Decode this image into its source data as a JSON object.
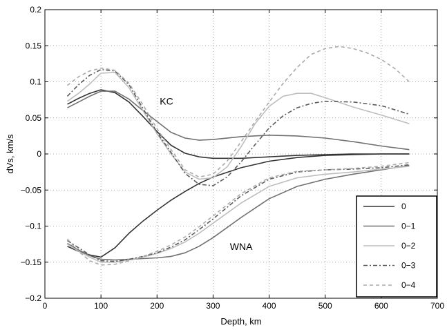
{
  "chart_data": {
    "type": "line",
    "title": "",
    "xlabel": "Depth, km",
    "ylabel": "dVs, km/s",
    "xlim": [
      0,
      700
    ],
    "ylim": [
      -0.2,
      0.2
    ],
    "xticks": [
      0,
      100,
      200,
      300,
      400,
      500,
      600,
      700
    ],
    "yticks": [
      -0.2,
      -0.15,
      -0.1,
      -0.05,
      0,
      0.05,
      0.1,
      0.15,
      0.2
    ],
    "xtick_labels": [
      "0",
      "100",
      "200",
      "300",
      "400",
      "500",
      "600",
      "700"
    ],
    "ytick_labels": [
      "−0.2",
      "−0.15",
      "−0.1",
      "−0.05",
      "0",
      "0.05",
      "0.1",
      "0.15",
      "0.2"
    ],
    "grid": true,
    "legend_position": "bottom-right",
    "annotations": [
      {
        "text": "KC",
        "x": 200,
        "y": 0.073
      },
      {
        "text": "WNA",
        "x": 330,
        "y": -0.128
      }
    ],
    "series": [
      {
        "name": "0",
        "group": "KC",
        "color": "#333333",
        "dash": "solid",
        "x": [
          40,
          60,
          80,
          100,
          125,
          150,
          175,
          200,
          225,
          250,
          275,
          300,
          350,
          400,
          450,
          500,
          550,
          600,
          650
        ],
        "y": [
          0.069,
          0.077,
          0.084,
          0.089,
          0.085,
          0.072,
          0.052,
          0.031,
          0.012,
          0.001,
          -0.004,
          -0.006,
          -0.006,
          -0.004,
          -0.002,
          -0.001,
          0,
          0,
          0
        ]
      },
      {
        "name": "0",
        "group": "WNA",
        "color": "#333333",
        "dash": "solid",
        "x": [
          40,
          60,
          80,
          100,
          125,
          150,
          175,
          200,
          225,
          250,
          275,
          300,
          350,
          400,
          450,
          500,
          550,
          600,
          650
        ],
        "y": [
          -0.128,
          -0.135,
          -0.14,
          -0.143,
          -0.13,
          -0.11,
          -0.093,
          -0.078,
          -0.064,
          -0.052,
          -0.041,
          -0.032,
          -0.019,
          -0.01,
          -0.005,
          -0.002,
          -0.001,
          0,
          0
        ]
      },
      {
        "name": "0−1",
        "group": "KC",
        "color": "#707070",
        "dash": "solid",
        "x": [
          40,
          60,
          80,
          100,
          125,
          150,
          175,
          200,
          225,
          250,
          275,
          300,
          350,
          400,
          450,
          500,
          550,
          600,
          650
        ],
        "y": [
          0.064,
          0.072,
          0.08,
          0.087,
          0.087,
          0.076,
          0.06,
          0.045,
          0.03,
          0.022,
          0.019,
          0.02,
          0.024,
          0.026,
          0.025,
          0.022,
          0.017,
          0.011,
          0.006
        ]
      },
      {
        "name": "0−1",
        "group": "WNA",
        "color": "#707070",
        "dash": "solid",
        "x": [
          40,
          60,
          80,
          100,
          125,
          150,
          175,
          200,
          225,
          250,
          275,
          300,
          350,
          400,
          450,
          500,
          550,
          600,
          650
        ],
        "y": [
          -0.124,
          -0.133,
          -0.141,
          -0.146,
          -0.147,
          -0.146,
          -0.145,
          -0.144,
          -0.142,
          -0.137,
          -0.128,
          -0.116,
          -0.088,
          -0.062,
          -0.045,
          -0.035,
          -0.028,
          -0.022,
          -0.016
        ]
      },
      {
        "name": "0−2",
        "group": "KC",
        "color": "#bdbdbd",
        "dash": "solid",
        "x": [
          40,
          60,
          80,
          100,
          125,
          150,
          175,
          200,
          225,
          250,
          275,
          300,
          325,
          350,
          375,
          400,
          425,
          450,
          475,
          500,
          550,
          600,
          650
        ],
        "y": [
          0.073,
          0.084,
          0.097,
          0.112,
          0.113,
          0.092,
          0.06,
          0.028,
          0.0,
          -0.025,
          -0.035,
          -0.033,
          -0.018,
          0.01,
          0.042,
          0.066,
          0.08,
          0.084,
          0.084,
          0.078,
          0.065,
          0.054,
          0.042
        ]
      },
      {
        "name": "0−2",
        "group": "WNA",
        "color": "#bdbdbd",
        "dash": "solid",
        "x": [
          40,
          60,
          80,
          100,
          125,
          150,
          175,
          200,
          225,
          250,
          275,
          300,
          350,
          400,
          450,
          500,
          550,
          600,
          650
        ],
        "y": [
          -0.125,
          -0.135,
          -0.143,
          -0.15,
          -0.15,
          -0.147,
          -0.143,
          -0.138,
          -0.131,
          -0.122,
          -0.11,
          -0.096,
          -0.068,
          -0.045,
          -0.033,
          -0.028,
          -0.025,
          -0.021,
          -0.017
        ]
      },
      {
        "name": "0−3",
        "group": "KC",
        "color": "#5a5a5a",
        "dash": "6,3,2,3",
        "x": [
          40,
          60,
          80,
          100,
          125,
          150,
          175,
          200,
          225,
          250,
          275,
          300,
          325,
          350,
          375,
          400,
          425,
          450,
          475,
          500,
          550,
          600,
          650
        ],
        "y": [
          0.08,
          0.096,
          0.109,
          0.117,
          0.115,
          0.096,
          0.063,
          0.03,
          0.002,
          -0.027,
          -0.042,
          -0.044,
          -0.032,
          -0.011,
          0.013,
          0.036,
          0.053,
          0.064,
          0.07,
          0.073,
          0.072,
          0.067,
          0.055
        ]
      },
      {
        "name": "0−3",
        "group": "WNA",
        "color": "#5a5a5a",
        "dash": "6,3,2,3",
        "x": [
          40,
          60,
          80,
          100,
          125,
          150,
          175,
          200,
          225,
          250,
          275,
          300,
          350,
          400,
          450,
          500,
          550,
          600,
          650
        ],
        "y": [
          -0.12,
          -0.13,
          -0.14,
          -0.148,
          -0.149,
          -0.146,
          -0.142,
          -0.137,
          -0.129,
          -0.119,
          -0.105,
          -0.09,
          -0.058,
          -0.035,
          -0.025,
          -0.022,
          -0.021,
          -0.019,
          -0.015
        ]
      },
      {
        "name": "0−4",
        "group": "KC",
        "color": "#aaaaaa",
        "dash": "5,4",
        "x": [
          40,
          60,
          80,
          100,
          125,
          150,
          175,
          200,
          225,
          250,
          275,
          300,
          325,
          350,
          375,
          400,
          425,
          450,
          475,
          500,
          525,
          550,
          575,
          600,
          625,
          650
        ],
        "y": [
          0.095,
          0.107,
          0.115,
          0.119,
          0.116,
          0.098,
          0.068,
          0.035,
          0.006,
          -0.022,
          -0.032,
          -0.028,
          -0.01,
          0.017,
          0.045,
          0.072,
          0.098,
          0.12,
          0.138,
          0.146,
          0.149,
          0.146,
          0.14,
          0.131,
          0.118,
          0.1
        ]
      },
      {
        "name": "0−4",
        "group": "WNA",
        "color": "#aaaaaa",
        "dash": "5,4",
        "x": [
          40,
          60,
          80,
          100,
          125,
          150,
          175,
          200,
          225,
          250,
          275,
          300,
          350,
          400,
          450,
          500,
          550,
          600,
          650
        ],
        "y": [
          -0.118,
          -0.135,
          -0.148,
          -0.154,
          -0.153,
          -0.148,
          -0.142,
          -0.135,
          -0.126,
          -0.115,
          -0.101,
          -0.086,
          -0.055,
          -0.033,
          -0.024,
          -0.022,
          -0.02,
          -0.017,
          -0.012
        ]
      }
    ],
    "legend": [
      {
        "label": "0",
        "color": "#333333",
        "dash": "solid"
      },
      {
        "label": "0−1",
        "color": "#707070",
        "dash": "solid"
      },
      {
        "label": "0−2",
        "color": "#bdbdbd",
        "dash": "solid"
      },
      {
        "label": "0−3",
        "color": "#5a5a5a",
        "dash": "6,3,2,3"
      },
      {
        "label": "0−4",
        "color": "#aaaaaa",
        "dash": "5,4"
      }
    ]
  }
}
